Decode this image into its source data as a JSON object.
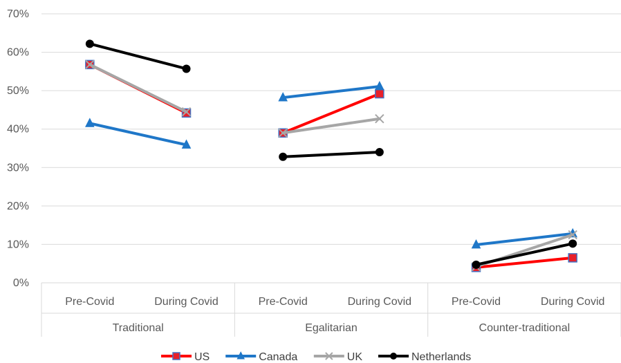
{
  "chart_data": {
    "type": "line",
    "title": "",
    "xlabel": "",
    "ylabel": "",
    "ylim": [
      0,
      0.7
    ],
    "y_ticks": [
      "0%",
      "10%",
      "20%",
      "30%",
      "40%",
      "50%",
      "60%",
      "70%"
    ],
    "grid": "horizontal",
    "legend_position": "bottom",
    "groups": [
      {
        "name": "Traditional",
        "categories": [
          "Pre-Covid",
          "During Covid"
        ]
      },
      {
        "name": "Egalitarian",
        "categories": [
          "Pre-Covid",
          "During Covid"
        ]
      },
      {
        "name": "Counter-traditional",
        "categories": [
          "Pre-Covid",
          "During Covid"
        ]
      }
    ],
    "series": [
      {
        "name": "US",
        "color": "#ff0000",
        "marker": "square",
        "marker_fill": "#e8202a",
        "marker_stroke": "#4472c4",
        "line_width": 4,
        "values": [
          [
            0.568,
            0.442
          ],
          [
            0.39,
            0.492
          ],
          [
            0.04,
            0.065
          ]
        ]
      },
      {
        "name": "Canada",
        "color": "#1f77c8",
        "marker": "triangle",
        "marker_fill": "#1f77c8",
        "line_width": 4,
        "values": [
          [
            0.415,
            0.359
          ],
          [
            0.482,
            0.511
          ],
          [
            0.099,
            0.128
          ]
        ]
      },
      {
        "name": "UK",
        "color": "#a6a6a6",
        "marker": "x",
        "marker_fill": "#a6a6a6",
        "line_width": 4,
        "values": [
          [
            0.568,
            0.445
          ],
          [
            0.39,
            0.427
          ],
          [
            0.042,
            0.125
          ]
        ]
      },
      {
        "name": "Netherlands",
        "color": "#000000",
        "marker": "circle",
        "marker_fill": "#000000",
        "line_width": 4,
        "values": [
          [
            0.622,
            0.557
          ],
          [
            0.328,
            0.34
          ],
          [
            0.047,
            0.102
          ]
        ]
      }
    ]
  }
}
